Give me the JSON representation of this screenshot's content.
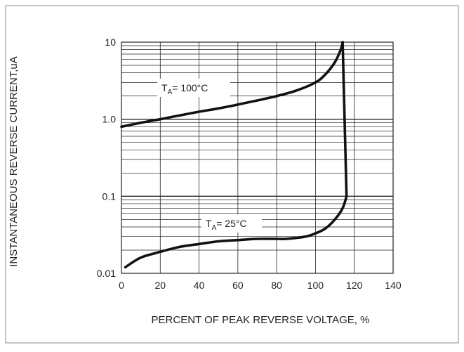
{
  "chart_data": {
    "type": "line",
    "xlabel": "PERCENT OF PEAK REVERSE VOLTAGE, %",
    "ylabel": "INSTANTANEOUS REVERSE CURRENT,uA",
    "xlim": [
      0,
      140
    ],
    "ylim": [
      0.01,
      10
    ],
    "y_scale": "log",
    "grid": true,
    "x_ticks": [
      0,
      20,
      40,
      60,
      80,
      100,
      120,
      140
    ],
    "y_ticks": [
      {
        "value": 0.01,
        "label": "0.01"
      },
      {
        "value": 0.1,
        "label": "0.1"
      },
      {
        "value": 1,
        "label": "1.0"
      },
      {
        "value": 10,
        "label": "10"
      }
    ],
    "series": [
      {
        "label": {
          "main": "T",
          "sub": "A",
          "rest": "= 100°C"
        },
        "points": [
          [
            0,
            0.8
          ],
          [
            10,
            0.9
          ],
          [
            20,
            1.0
          ],
          [
            30,
            1.12
          ],
          [
            40,
            1.25
          ],
          [
            50,
            1.38
          ],
          [
            60,
            1.55
          ],
          [
            70,
            1.75
          ],
          [
            80,
            2.0
          ],
          [
            90,
            2.35
          ],
          [
            100,
            3.0
          ],
          [
            105,
            3.8
          ],
          [
            110,
            5.5
          ],
          [
            113,
            8.0
          ],
          [
            114,
            10
          ]
        ]
      },
      {
        "label": {
          "main": "T",
          "sub": "A",
          "rest": "= 25°C"
        },
        "points": [
          [
            2,
            0.012
          ],
          [
            10,
            0.016
          ],
          [
            20,
            0.019
          ],
          [
            30,
            0.022
          ],
          [
            40,
            0.024
          ],
          [
            50,
            0.026
          ],
          [
            60,
            0.027
          ],
          [
            70,
            0.028
          ],
          [
            80,
            0.028
          ],
          [
            85,
            0.028
          ],
          [
            95,
            0.03
          ],
          [
            100,
            0.033
          ],
          [
            105,
            0.038
          ],
          [
            110,
            0.05
          ],
          [
            114,
            0.07
          ],
          [
            116,
            0.1
          ]
        ]
      }
    ],
    "connector": [
      [
        114,
        10
      ],
      [
        116,
        0.1
      ]
    ]
  }
}
